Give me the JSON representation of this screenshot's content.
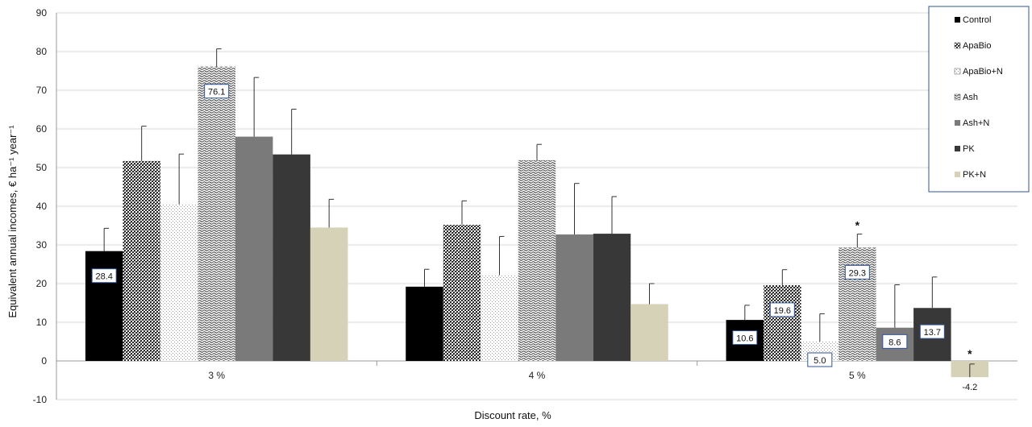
{
  "chart_data": {
    "type": "bar",
    "categories": [
      "3 %",
      "4 %",
      "5 %"
    ],
    "xlabel": "Discount rate, %",
    "ylabel": "Equivalent annual incomes, € ha⁻¹ year⁻¹",
    "ylim": [
      -10,
      90
    ],
    "yticks": [
      -10,
      0,
      10,
      20,
      30,
      40,
      50,
      60,
      70,
      80,
      90
    ],
    "grid": true,
    "legend_position": "top-right",
    "series": [
      {
        "name": "Control",
        "pattern": "solid-black",
        "color": "#000000",
        "values": [
          28.4,
          19.2,
          10.6
        ],
        "errors": [
          5.9,
          4.5,
          3.8
        ],
        "labels": [
          "28.4",
          "",
          "10.6"
        ],
        "stars": [
          false,
          false,
          false
        ]
      },
      {
        "name": "ApaBio",
        "pattern": "dense-check",
        "color": "#3a3a3a",
        "values": [
          51.7,
          35.2,
          19.6
        ],
        "errors": [
          9.0,
          6.2,
          4.0
        ],
        "labels": [
          "",
          "",
          "19.6"
        ],
        "stars": [
          false,
          false,
          false
        ]
      },
      {
        "name": "ApaBio+N",
        "pattern": "light-dots",
        "color": "#bdbdbd",
        "values": [
          40.5,
          22.2,
          5.0
        ],
        "errors": [
          13.0,
          10.0,
          7.2
        ],
        "labels": [
          "",
          "",
          "5.0"
        ],
        "stars": [
          false,
          false,
          false
        ]
      },
      {
        "name": "Ash",
        "pattern": "wave",
        "color": "#555555",
        "values": [
          76.1,
          51.9,
          29.3
        ],
        "errors": [
          4.6,
          4.1,
          3.5
        ],
        "labels": [
          "76.1",
          "",
          "29.3"
        ],
        "stars": [
          false,
          false,
          true
        ]
      },
      {
        "name": "Ash+N",
        "pattern": "solid-gray",
        "color": "#7a7a7a",
        "values": [
          58.0,
          32.7,
          8.6
        ],
        "errors": [
          15.3,
          13.2,
          11.1
        ],
        "labels": [
          "",
          "",
          "8.6"
        ],
        "stars": [
          false,
          false,
          false
        ]
      },
      {
        "name": "PK",
        "pattern": "solid-dark",
        "color": "#383838",
        "values": [
          53.4,
          32.9,
          13.7
        ],
        "errors": [
          11.7,
          9.6,
          8.0
        ],
        "labels": [
          "",
          "",
          "13.7"
        ],
        "stars": [
          false,
          false,
          false
        ]
      },
      {
        "name": "PK+N",
        "pattern": "solid-beige",
        "color": "#d6d2b8",
        "values": [
          34.5,
          14.7,
          -4.2
        ],
        "errors": [
          7.3,
          5.3,
          3.4
        ],
        "labels": [
          "",
          "",
          "-4.2"
        ],
        "stars": [
          false,
          false,
          true
        ]
      }
    ]
  }
}
